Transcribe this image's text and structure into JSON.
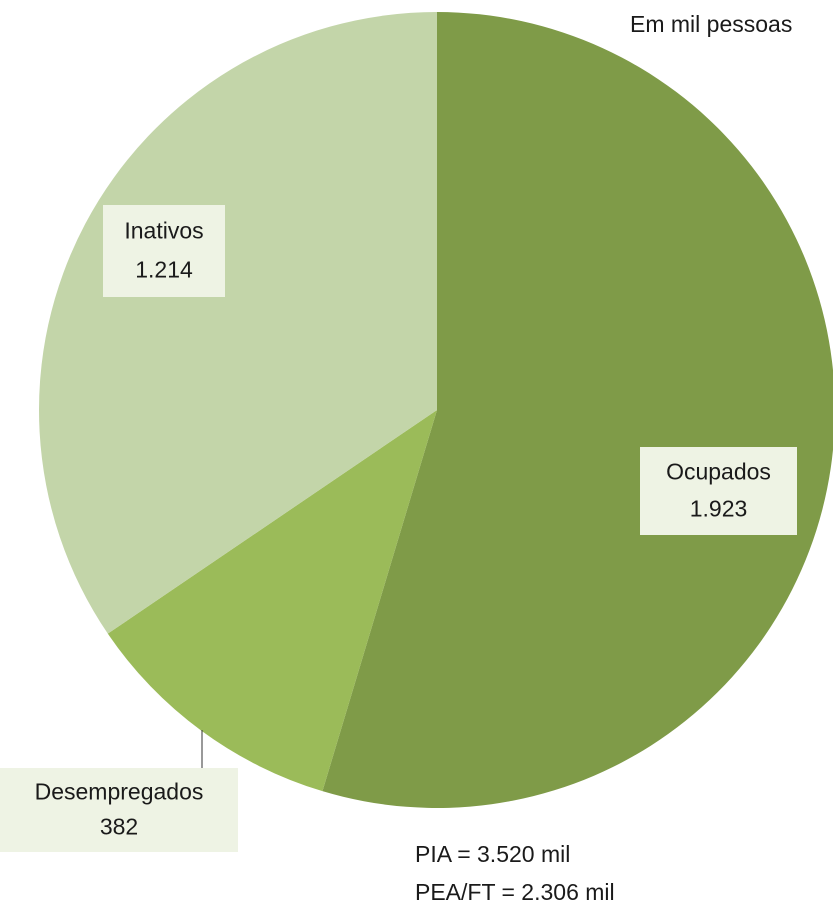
{
  "chart_data": {
    "type": "pie",
    "subtitle": "Em mil pessoas",
    "categories": [
      "Ocupados",
      "Desempregados",
      "Inativos"
    ],
    "values": [
      1923,
      382,
      1214
    ],
    "value_labels": [
      "1.923",
      "382",
      "1.214"
    ],
    "colors": [
      "#7f9b48",
      "#9bbb59",
      "#c3d5a9"
    ],
    "start_angle": "top",
    "direction": "clockwise",
    "annotations": [
      "PIA = 3.520 mil",
      "PEA/FT = 2.306 mil"
    ]
  }
}
